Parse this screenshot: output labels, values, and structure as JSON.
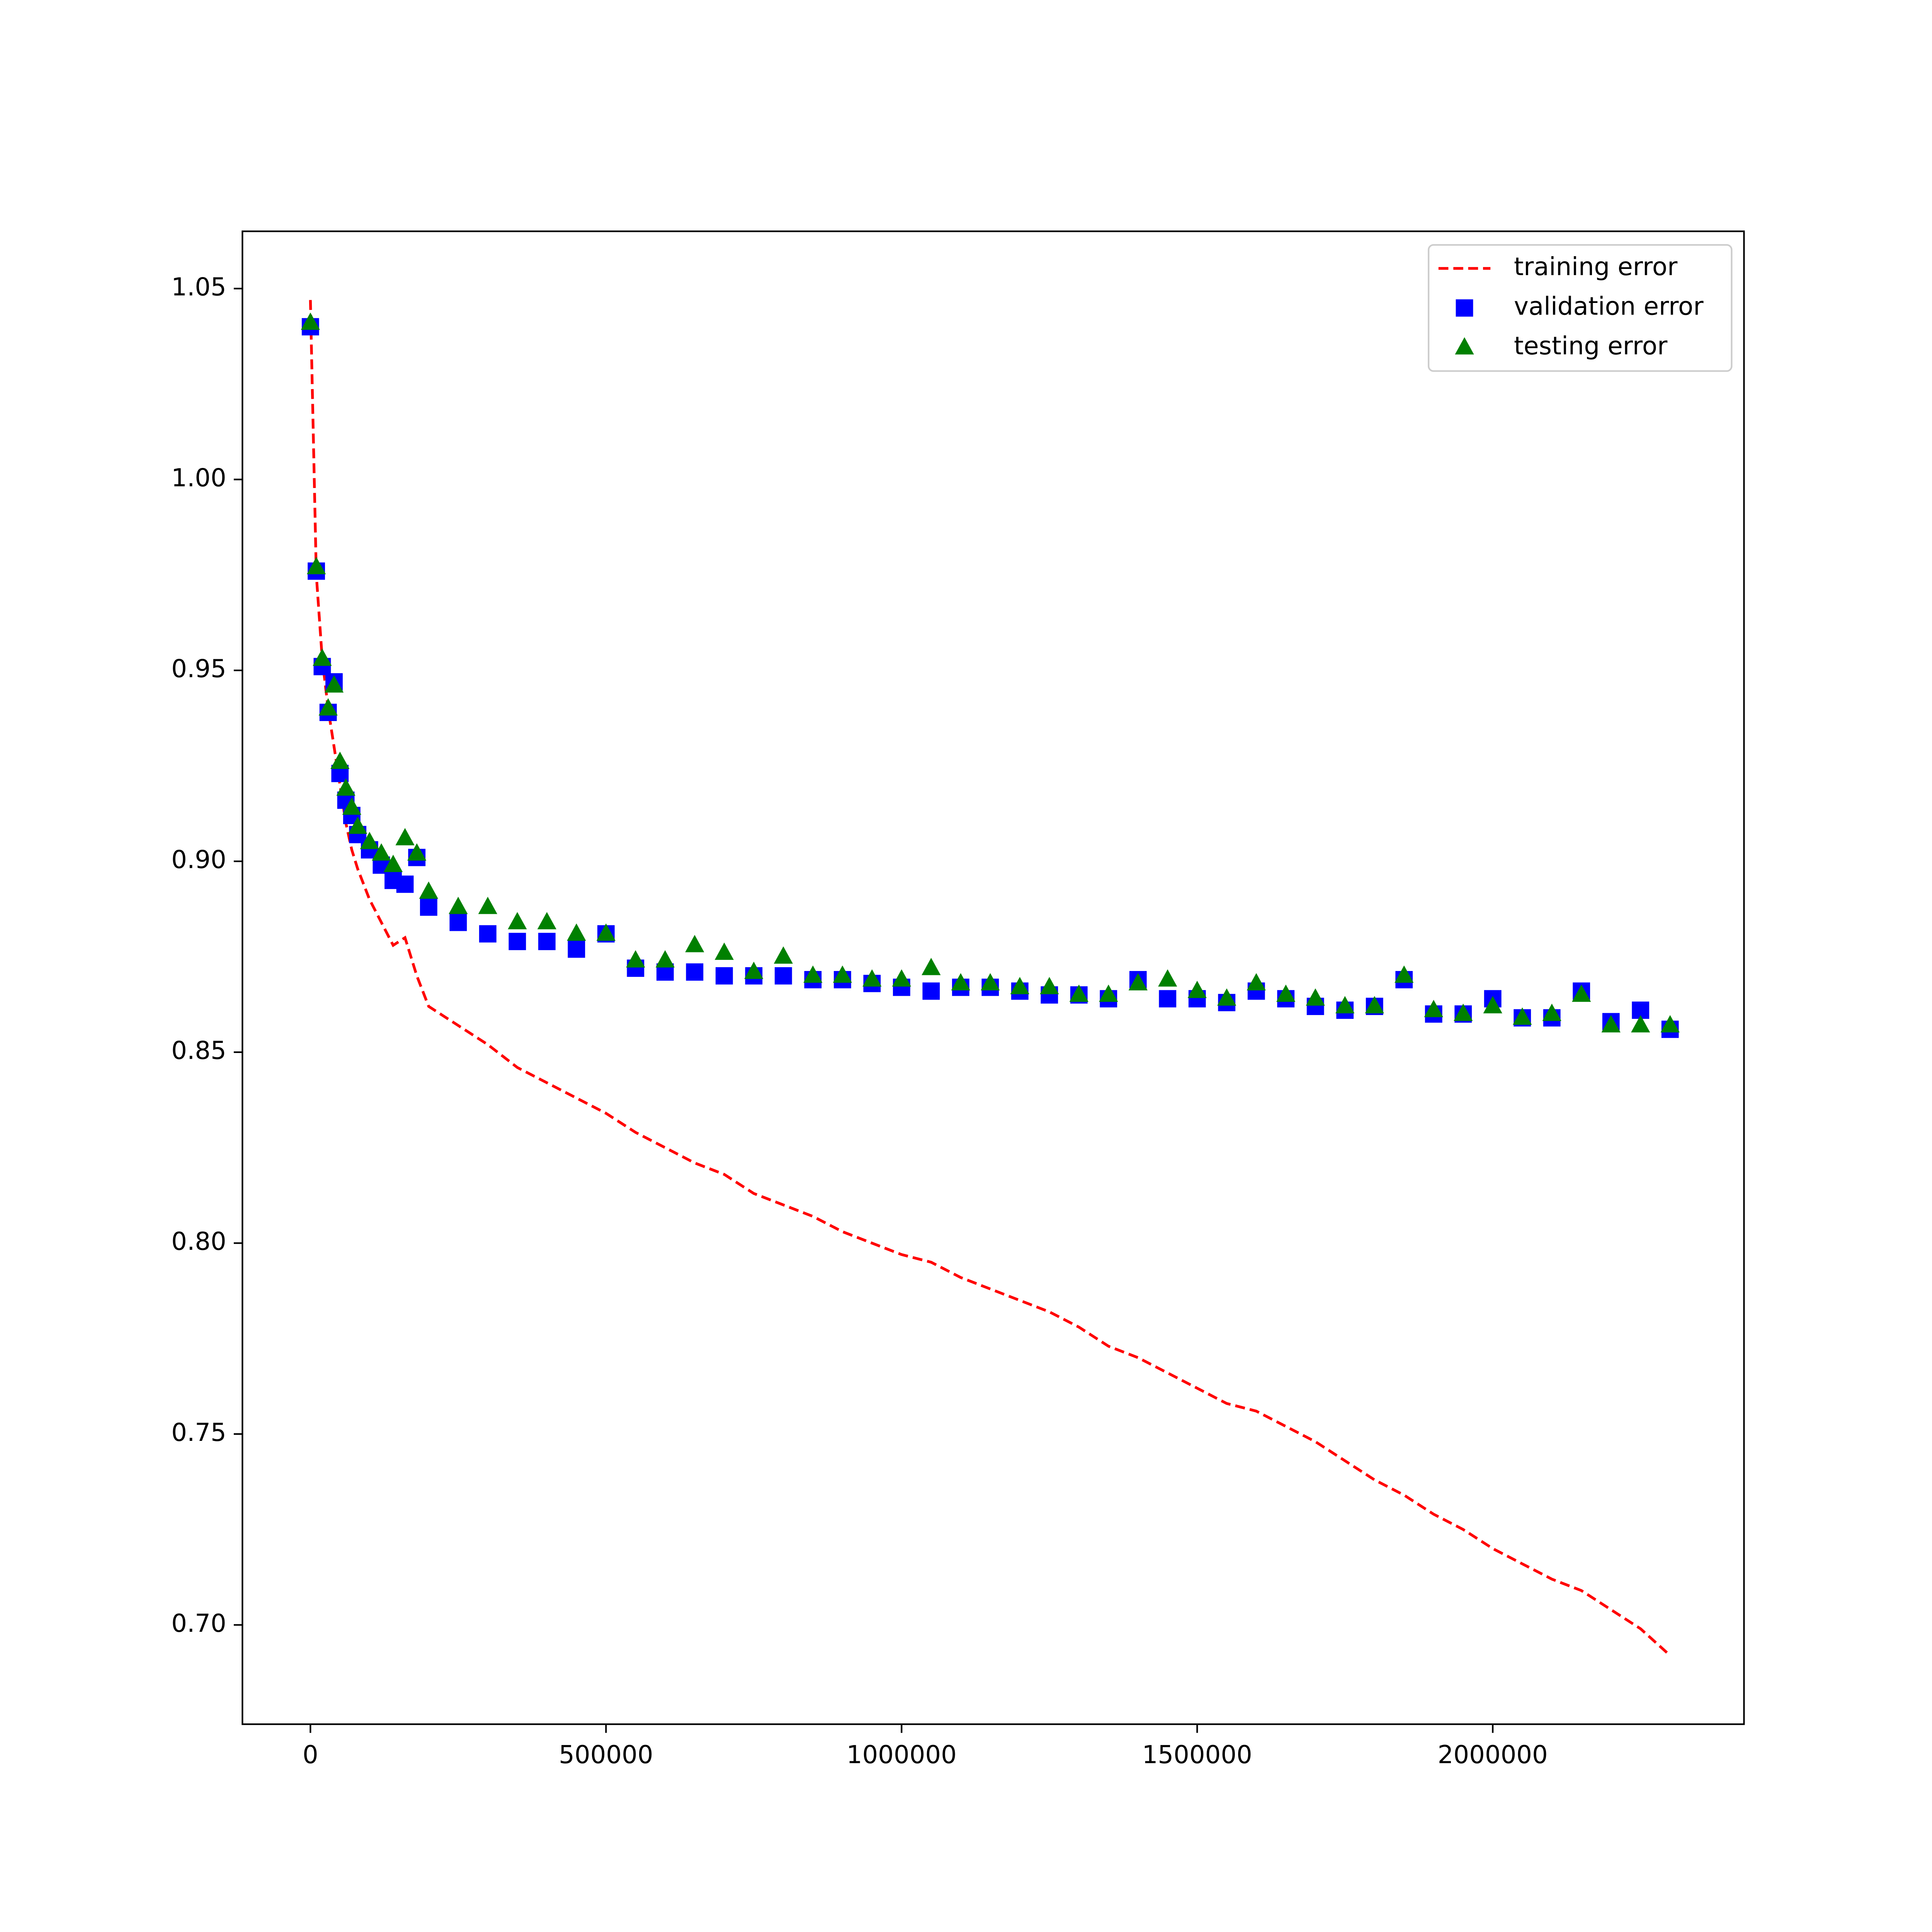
{
  "chart_data": {
    "type": "line",
    "x": [
      0,
      10000,
      20000,
      30000,
      40000,
      50000,
      60000,
      70000,
      80000,
      100000,
      120000,
      140000,
      160000,
      180000,
      200000,
      250000,
      300000,
      350000,
      400000,
      450000,
      500000,
      550000,
      600000,
      650000,
      700000,
      750000,
      800000,
      850000,
      900000,
      950000,
      1000000,
      1050000,
      1100000,
      1150000,
      1200000,
      1250000,
      1300000,
      1350000,
      1400000,
      1450000,
      1500000,
      1550000,
      1600000,
      1650000,
      1700000,
      1750000,
      1800000,
      1850000,
      1900000,
      1950000,
      2000000,
      2050000,
      2100000,
      2150000,
      2200000,
      2250000,
      2300000
    ],
    "series": [
      {
        "name": "training error",
        "color": "#ff0000",
        "style": "dashed",
        "values": [
          1.047,
          0.975,
          0.953,
          0.94,
          0.93,
          0.92,
          0.91,
          0.903,
          0.898,
          0.89,
          0.884,
          0.878,
          0.88,
          0.87,
          0.862,
          0.857,
          0.852,
          0.846,
          0.842,
          0.838,
          0.834,
          0.829,
          0.825,
          0.821,
          0.818,
          0.813,
          0.81,
          0.807,
          0.803,
          0.8,
          0.797,
          0.795,
          0.791,
          0.788,
          0.785,
          0.782,
          0.778,
          0.773,
          0.77,
          0.766,
          0.762,
          0.758,
          0.756,
          0.752,
          0.748,
          0.743,
          0.738,
          0.734,
          0.729,
          0.725,
          0.72,
          0.716,
          0.712,
          0.709,
          0.704,
          0.699,
          0.692
        ]
      },
      {
        "name": "validation error",
        "color": "#0000ff",
        "style": "square",
        "values": [
          1.04,
          0.976,
          0.951,
          0.939,
          0.947,
          0.923,
          0.916,
          0.912,
          0.907,
          0.903,
          0.899,
          0.895,
          0.894,
          0.901,
          0.888,
          0.884,
          0.881,
          0.879,
          0.879,
          0.877,
          0.881,
          0.872,
          0.871,
          0.871,
          0.87,
          0.87,
          0.87,
          0.869,
          0.869,
          0.868,
          0.867,
          0.866,
          0.867,
          0.867,
          0.866,
          0.865,
          0.865,
          0.864,
          0.869,
          0.864,
          0.864,
          0.863,
          0.866,
          0.864,
          0.862,
          0.861,
          0.862,
          0.869,
          0.86,
          0.86,
          0.864,
          0.859,
          0.859,
          0.866,
          0.858,
          0.861,
          0.856
        ]
      },
      {
        "name": "testing error",
        "color": "#008000",
        "style": "triangle",
        "values": [
          1.041,
          0.977,
          0.953,
          0.94,
          0.946,
          0.926,
          0.919,
          0.914,
          0.909,
          0.905,
          0.902,
          0.899,
          0.906,
          0.902,
          0.892,
          0.888,
          0.888,
          0.884,
          0.884,
          0.881,
          0.881,
          0.874,
          0.874,
          0.878,
          0.876,
          0.871,
          0.875,
          0.87,
          0.87,
          0.869,
          0.869,
          0.872,
          0.868,
          0.868,
          0.867,
          0.867,
          0.865,
          0.865,
          0.868,
          0.869,
          0.866,
          0.864,
          0.868,
          0.865,
          0.864,
          0.862,
          0.862,
          0.87,
          0.861,
          0.86,
          0.862,
          0.859,
          0.86,
          0.865,
          0.857,
          0.857,
          0.857
        ]
      }
    ],
    "xlim": [
      -115000,
      2425000
    ],
    "ylim": [
      0.674,
      1.065
    ],
    "xticks": [
      0,
      500000,
      1000000,
      1500000,
      2000000
    ],
    "yticks": [
      {
        "value": 0.7,
        "label": "0.70"
      },
      0.75,
      {
        "value": 0.8,
        "label": "0.80"
      },
      0.85,
      {
        "value": 0.9,
        "label": "0.90"
      },
      0.95,
      {
        "value": 1.0,
        "label": "1.00"
      },
      1.05
    ],
    "grid": false,
    "legend": "upper right"
  }
}
